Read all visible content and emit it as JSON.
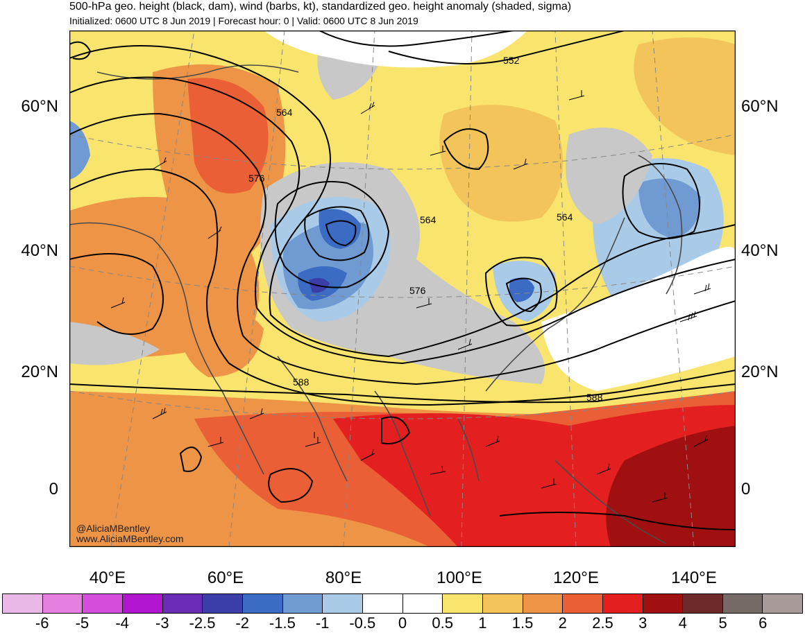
{
  "title": "500-hPa geo. height (black, dam), wind (barbs, kt), standardized geo. height anomaly (shaded, sigma)",
  "subtitle": "Initialized: 0600 UTC 8 Jun 2019 | Forecast hour: 0 | Valid: 0600 UTC 8 Jun 2019",
  "lat_labels": [
    "60°N",
    "40°N",
    "20°N",
    "0"
  ],
  "lon_labels": [
    "40°E",
    "60°E",
    "80°E",
    "100°E",
    "120°E",
    "140°E"
  ],
  "contour_labels": [
    "552",
    "564",
    "576",
    "564",
    "564",
    "576",
    "588",
    "588"
  ],
  "credit": {
    "handle": "@AliciaMBentley",
    "url": "www.AliciaMBentley.com"
  },
  "colorbar": {
    "tick_labels": [
      "-6",
      "-5",
      "-4",
      "-3",
      "-2.5",
      "-2",
      "-1.5",
      "-1",
      "-0.5",
      "0",
      "0.5",
      "1",
      "1.5",
      "2",
      "2.5",
      "3",
      "4",
      "5",
      "6"
    ],
    "colors": [
      "#e9b8e6",
      "#e57fe0",
      "#d44ddb",
      "#b215d0",
      "#6a2bb5",
      "#3b3da8",
      "#3c6bc4",
      "#6f9ad2",
      "#a9cbe8",
      "#ffffff",
      "#ffffff",
      "#f9e46e",
      "#f2c45a",
      "#ee9446",
      "#eb5f36",
      "#e41f1f",
      "#a01010",
      "#6e2a2a",
      "#756a66",
      "#a89a98"
    ]
  }
}
